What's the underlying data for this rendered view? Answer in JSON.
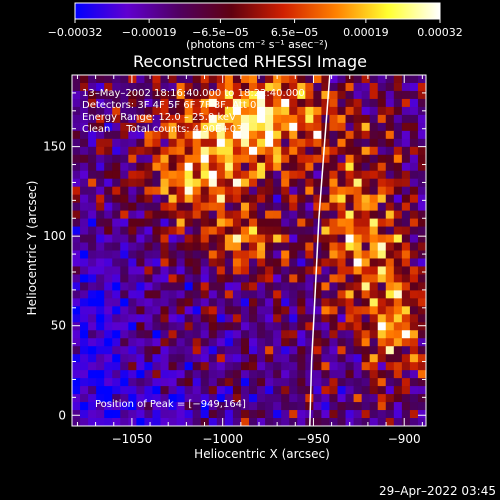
{
  "chart_data": {
    "type": "heatmap",
    "title": "Reconstructed RHESSI Image",
    "xlabel": "Heliocentric X (arcsec)",
    "ylabel": "Heliocentric Y (arcsec)",
    "xlim": [
      -1083,
      -888
    ],
    "ylim": [
      -6,
      190
    ],
    "xticks": [
      -1050,
      -1000,
      -950,
      -900
    ],
    "xtick_labels": [
      "−1050",
      "−1000",
      "−950",
      "−900"
    ],
    "yticks": [
      0,
      50,
      100,
      150
    ],
    "ytick_labels": [
      "0",
      "50",
      "100",
      "150"
    ],
    "colorbar": {
      "range": [
        -0.00032,
        0.00032
      ],
      "ticks": [
        -0.00032,
        -0.00019,
        -6.5e-05,
        6.5e-05,
        0.00019,
        0.00032
      ],
      "tick_labels": [
        "−0.00032",
        "−0.00019",
        "−6.5e−05",
        "6.5e−05",
        "0.00019",
        "0.00032"
      ],
      "unit_label": "(photons cm⁻² s⁻¹ asec⁻²)",
      "colors": [
        "#0000ff",
        "#6000d0",
        "#500060",
        "#600010",
        "#d02000",
        "#ff8000",
        "#ffff30",
        "#ffffff"
      ]
    },
    "info_lines": [
      "13–May–2002 18:16:40.000 to 18:22:40.000",
      "Detectors: 3F 4F 5F 6F 7F 8F, Att 0",
      "Energy Range: 12.0 – 25.0 keV",
      "Clean     Total counts: 4.90E+03"
    ],
    "peak_label": "Position of Peak = [−949,164]",
    "peak": [
      -949,
      164
    ],
    "limb_curve": [
      [
        -941,
        190
      ],
      [
        -944,
        150
      ],
      [
        -947,
        110
      ],
      [
        -949,
        70
      ],
      [
        -951,
        30
      ],
      [
        -952,
        -6
      ]
    ],
    "grid": false,
    "legend": "none"
  },
  "footer": {
    "timestamp": "29–Apr–2022 03:45"
  }
}
